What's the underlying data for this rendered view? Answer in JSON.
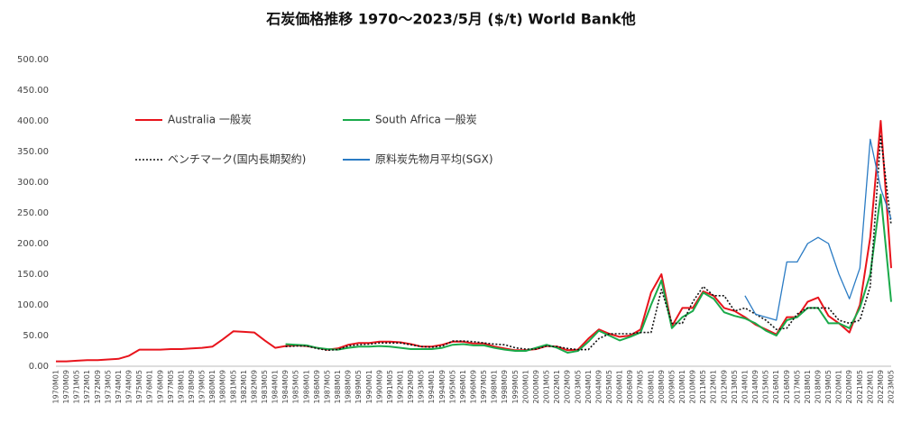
{
  "chart_data": {
    "type": "line",
    "title": "石炭価格推移  1970～2023/5月 ($/t)  World Bank他",
    "categories": [
      "1970M01",
      "1970M09",
      "1971M05",
      "1972M01",
      "1972M09",
      "1973M05",
      "1974M01",
      "1974M09",
      "1975M05",
      "1976M01",
      "1976M09",
      "1977M05",
      "1978M01",
      "1978M09",
      "1979M05",
      "1980M01",
      "1980M09",
      "1981M05",
      "1982M01",
      "1982M09",
      "1983M05",
      "1984M01",
      "1984M09",
      "1985M05",
      "1986M01",
      "1986M09",
      "1987M05",
      "1988M01",
      "1988M09",
      "1989M05",
      "1990M01",
      "1990M09",
      "1991M05",
      "1992M01",
      "1992M09",
      "1993M05",
      "1994M01",
      "1994M09",
      "1995M05",
      "1996M01",
      "1996M09",
      "1997M05",
      "1998M01",
      "1998M09",
      "1999M05",
      "2000M01",
      "2000M09",
      "2001M05",
      "2002M01",
      "2002M09",
      "2003M05",
      "2004M01",
      "2004M09",
      "2005M05",
      "2006M01",
      "2006M09",
      "2007M05",
      "2008M01",
      "2008M09",
      "2009M05",
      "2010M01",
      "2010M09",
      "2011M05",
      "2012M01",
      "2012M09",
      "2013M05",
      "2014M01",
      "2014M09",
      "2015M05",
      "2016M01",
      "2016M09",
      "2017M05",
      "2018M01",
      "2018M09",
      "2019M05",
      "2020M01",
      "2020M09",
      "2021M05",
      "2022M01",
      "2022M09",
      "2023M05"
    ],
    "series": [
      {
        "name": "Australia 一般炭",
        "color": "#e8141c",
        "line_style": "solid",
        "values": [
          8,
          8,
          9,
          10,
          10,
          11,
          12,
          17,
          27,
          27,
          27,
          28,
          28,
          29,
          30,
          32,
          44,
          57,
          56,
          55,
          42,
          30,
          33,
          34,
          33,
          30,
          27,
          29,
          35,
          38,
          38,
          40,
          40,
          39,
          36,
          32,
          32,
          35,
          40,
          40,
          37,
          37,
          32,
          29,
          26,
          26,
          28,
          33,
          32,
          26,
          27,
          45,
          60,
          53,
          48,
          50,
          60,
          120,
          150,
          65,
          95,
          95,
          122,
          115,
          95,
          90,
          80,
          68,
          60,
          52,
          80,
          80,
          105,
          112,
          82,
          70,
          55,
          100,
          210,
          400,
          160
        ]
      },
      {
        "name": "South Africa 一般炭",
        "color": "#1aaa4a",
        "line_style": "solid",
        "values": [
          null,
          null,
          null,
          null,
          null,
          null,
          null,
          null,
          null,
          null,
          null,
          null,
          null,
          null,
          null,
          null,
          null,
          null,
          null,
          null,
          null,
          null,
          36,
          35,
          34,
          30,
          28,
          27,
          30,
          32,
          32,
          33,
          32,
          30,
          28,
          28,
          28,
          30,
          35,
          36,
          34,
          34,
          30,
          27,
          25,
          25,
          30,
          35,
          30,
          22,
          25,
          40,
          58,
          50,
          42,
          48,
          55,
          100,
          140,
          62,
          80,
          90,
          120,
          110,
          88,
          82,
          78,
          70,
          58,
          50,
          75,
          80,
          95,
          95,
          70,
          70,
          62,
          95,
          150,
          280,
          105
        ]
      },
      {
        "name": "ベンチマーク(国内長期契約)",
        "color": "#111111",
        "line_style": "dotted",
        "values": [
          null,
          null,
          null,
          null,
          null,
          null,
          null,
          null,
          null,
          null,
          null,
          null,
          null,
          null,
          null,
          null,
          null,
          null,
          null,
          null,
          null,
          null,
          32,
          33,
          33,
          29,
          26,
          27,
          33,
          35,
          36,
          38,
          38,
          38,
          35,
          32,
          31,
          33,
          41,
          41,
          40,
          38,
          36,
          35,
          30,
          28,
          28,
          33,
          32,
          29,
          27,
          27,
          45,
          53,
          53,
          53,
          55,
          55,
          125,
          70,
          70,
          105,
          130,
          115,
          115,
          90,
          95,
          85,
          75,
          60,
          62,
          85,
          95,
          95,
          95,
          75,
          70,
          75,
          130,
          375,
          230
        ]
      },
      {
        "name": "原料炭先物月平均(SGX)",
        "color": "#2a7bc4",
        "line_style": "solid",
        "values": [
          null,
          null,
          null,
          null,
          null,
          null,
          null,
          null,
          null,
          null,
          null,
          null,
          null,
          null,
          null,
          null,
          null,
          null,
          null,
          null,
          null,
          null,
          null,
          null,
          null,
          null,
          null,
          null,
          null,
          null,
          null,
          null,
          null,
          null,
          null,
          null,
          null,
          null,
          null,
          null,
          null,
          null,
          null,
          null,
          null,
          null,
          null,
          null,
          null,
          null,
          null,
          null,
          null,
          null,
          null,
          null,
          null,
          null,
          null,
          null,
          null,
          null,
          null,
          null,
          null,
          null,
          115,
          85,
          80,
          75,
          170,
          170,
          200,
          210,
          200,
          150,
          110,
          160,
          370,
          290,
          240
        ]
      }
    ],
    "ylim": [
      0,
      500
    ],
    "yticks": [
      {
        "value": 0,
        "label": "0.00"
      },
      {
        "value": 50,
        "label": "50.00"
      },
      {
        "value": 100,
        "label": "100.00"
      },
      {
        "value": 150,
        "label": "150.00"
      },
      {
        "value": 200,
        "label": "200.00"
      },
      {
        "value": 250,
        "label": "250.00"
      },
      {
        "value": 300,
        "label": "300.00"
      },
      {
        "value": 350,
        "label": "350.00"
      },
      {
        "value": 400,
        "label": "400.00"
      },
      {
        "value": 450,
        "label": "450.00"
      },
      {
        "value": 500,
        "label": "500.00"
      }
    ],
    "grid": false
  }
}
